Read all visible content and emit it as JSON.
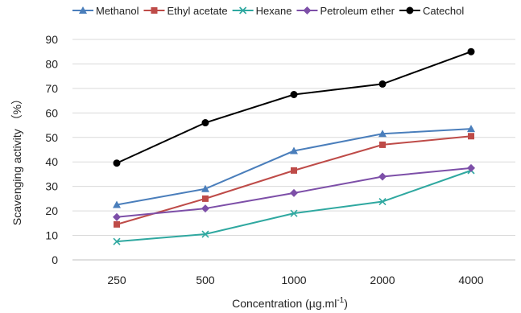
{
  "chart_data": {
    "type": "line",
    "title": "",
    "xlabel": "Concentration (µg.ml",
    "xlabel_sup": "-1",
    "xlabel_close": ")",
    "ylabel": "Scavenging activity （%）",
    "categories": [
      "250",
      "500",
      "1000",
      "2000",
      "4000"
    ],
    "ylim": [
      0,
      90
    ],
    "yticks": [
      0,
      10,
      20,
      30,
      40,
      50,
      60,
      70,
      80,
      90
    ],
    "grid": true,
    "legend_position": "top",
    "series": [
      {
        "name": "Methanol",
        "color": "#4a7ebb",
        "marker": "triangle",
        "values": [
          22.5,
          29,
          44.5,
          51.5,
          53.5
        ]
      },
      {
        "name": "Ethyl acetate",
        "color": "#be4b48",
        "marker": "square",
        "values": [
          14.5,
          25,
          36.5,
          47,
          50.5
        ]
      },
      {
        "name": "Hexane",
        "color": "#2fa8a0",
        "marker": "x",
        "values": [
          7.5,
          10.5,
          19,
          23.8,
          36.5
        ]
      },
      {
        "name": "Petroleum ether",
        "color": "#7d4fa8",
        "marker": "diamond",
        "values": [
          17.5,
          21,
          27.3,
          34,
          37.5
        ]
      },
      {
        "name": "Catechol",
        "color": "#000000",
        "marker": "circle",
        "values": [
          39.5,
          56,
          67.5,
          71.8,
          85
        ]
      }
    ]
  }
}
